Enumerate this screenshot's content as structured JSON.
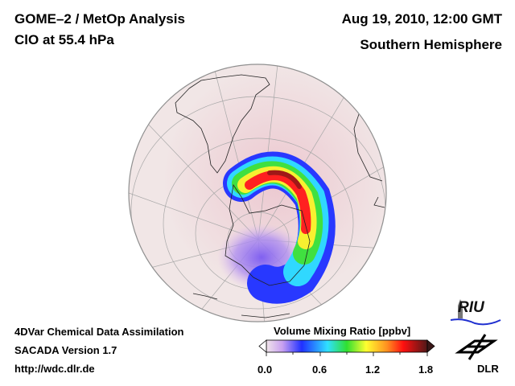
{
  "header": {
    "title_line1": "GOME–2 / MetOp Analysis",
    "title_line2": "ClO at 55.4 hPa",
    "date": "Aug 19, 2010, 12:00 GMT",
    "region": "Southern Hemisphere"
  },
  "footer": {
    "line1": "4DVar Chemical Data Assimilation",
    "line2": "SACADA Version 1.7",
    "line3": "http://wdc.dlr.de"
  },
  "colorbar": {
    "title": "Volume Mixing Ratio [ppbv]",
    "ticks": [
      "0.0",
      "0.6",
      "1.2",
      "1.8"
    ],
    "range": [
      0.0,
      1.8
    ],
    "colors": [
      "#f0e4ea",
      "#c8a0f0",
      "#2030ff",
      "#30e0ff",
      "#30e030",
      "#ffff30",
      "#ff9020",
      "#ff1010",
      "#501818"
    ]
  },
  "logos": {
    "riu": "RIU",
    "dlr": "DLR"
  },
  "map": {
    "projection": "orthographic-south-pole",
    "land_color": "#f2e6e6",
    "outline_color": "#909090"
  }
}
